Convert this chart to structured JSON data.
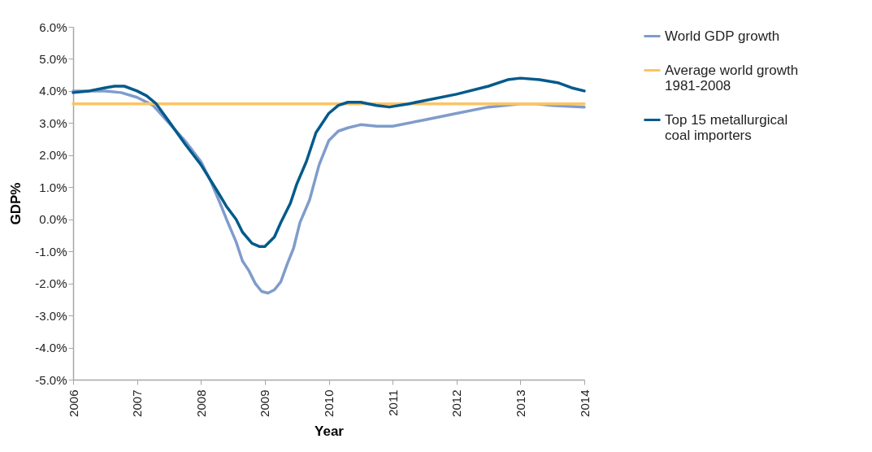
{
  "chart_data": {
    "type": "line",
    "xlabel": "Year",
    "ylabel": "GDP%",
    "xlim": [
      2006,
      2014
    ],
    "xticks": [
      2006,
      2007,
      2008,
      2009,
      2010,
      2011,
      2012,
      2013,
      2014
    ],
    "ylim": [
      -5,
      6
    ],
    "yticks": [
      {
        "value": -5,
        "label": "-5.0%"
      },
      {
        "value": -4,
        "label": "-4.0%"
      },
      {
        "value": -3,
        "label": "-3.0%"
      },
      {
        "value": -2,
        "label": "-2.0%"
      },
      {
        "value": -1,
        "label": "-1.0%"
      },
      {
        "value": 0,
        "label": "0.0%"
      },
      {
        "value": 1,
        "label": "1.0%"
      },
      {
        "value": 2,
        "label": "2.0%"
      },
      {
        "value": 3,
        "label": "3.0%"
      },
      {
        "value": 4,
        "label": "4.0%"
      },
      {
        "value": 5,
        "label": "5.0%"
      },
      {
        "value": 6,
        "label": "6.0%"
      }
    ],
    "grid": false,
    "legend": "right",
    "line_style": "solid",
    "marker": "none",
    "series": [
      {
        "name": "World GDP growth",
        "color": "#7f9ccb",
        "x": [
          2006,
          2006.25,
          2006.5,
          2006.75,
          2007,
          2007.25,
          2007.5,
          2007.75,
          2008,
          2008.15,
          2008.3,
          2008.4,
          2008.55,
          2008.65,
          2008.75,
          2008.85,
          2008.95,
          2009.05,
          2009.15,
          2009.25,
          2009.35,
          2009.45,
          2009.55,
          2009.7,
          2009.85,
          2010,
          2010.15,
          2010.3,
          2010.5,
          2010.75,
          2011,
          2011.5,
          2012,
          2012.5,
          2013,
          2013.25,
          2013.5,
          2014
        ],
        "values": [
          4.0,
          4.0,
          4.0,
          3.95,
          3.8,
          3.55,
          3.0,
          2.45,
          1.8,
          1.2,
          0.5,
          0.0,
          -0.7,
          -1.3,
          -1.6,
          -2.0,
          -2.25,
          -2.3,
          -2.2,
          -1.95,
          -1.4,
          -0.9,
          -0.1,
          0.6,
          1.7,
          2.45,
          2.75,
          2.85,
          2.95,
          2.9,
          2.9,
          3.1,
          3.3,
          3.5,
          3.6,
          3.6,
          3.55,
          3.5
        ]
      },
      {
        "name": "Average world growth 1981-2008",
        "color": "#fdc463",
        "x": [
          2006,
          2014
        ],
        "values": [
          3.6,
          3.6
        ]
      },
      {
        "name": "Top 15 metallurgical coal importers",
        "color": "#035a8c",
        "x": [
          2006,
          2006.25,
          2006.5,
          2006.65,
          2006.8,
          2007,
          2007.15,
          2007.3,
          2007.5,
          2007.75,
          2008,
          2008.25,
          2008.4,
          2008.55,
          2008.65,
          2008.8,
          2008.92,
          2009,
          2009.15,
          2009.25,
          2009.4,
          2009.5,
          2009.65,
          2009.8,
          2010,
          2010.15,
          2010.3,
          2010.5,
          2010.75,
          2010.95,
          2011.25,
          2011.5,
          2012,
          2012.5,
          2012.8,
          2013,
          2013.3,
          2013.6,
          2013.8,
          2014
        ],
        "values": [
          3.95,
          4.0,
          4.1,
          4.15,
          4.15,
          4.0,
          3.85,
          3.6,
          3.05,
          2.35,
          1.7,
          0.9,
          0.4,
          0.0,
          -0.4,
          -0.75,
          -0.85,
          -0.85,
          -0.55,
          -0.1,
          0.5,
          1.1,
          1.8,
          2.7,
          3.3,
          3.55,
          3.65,
          3.65,
          3.55,
          3.5,
          3.6,
          3.7,
          3.9,
          4.15,
          4.35,
          4.4,
          4.35,
          4.25,
          4.1,
          4.0
        ]
      }
    ]
  }
}
